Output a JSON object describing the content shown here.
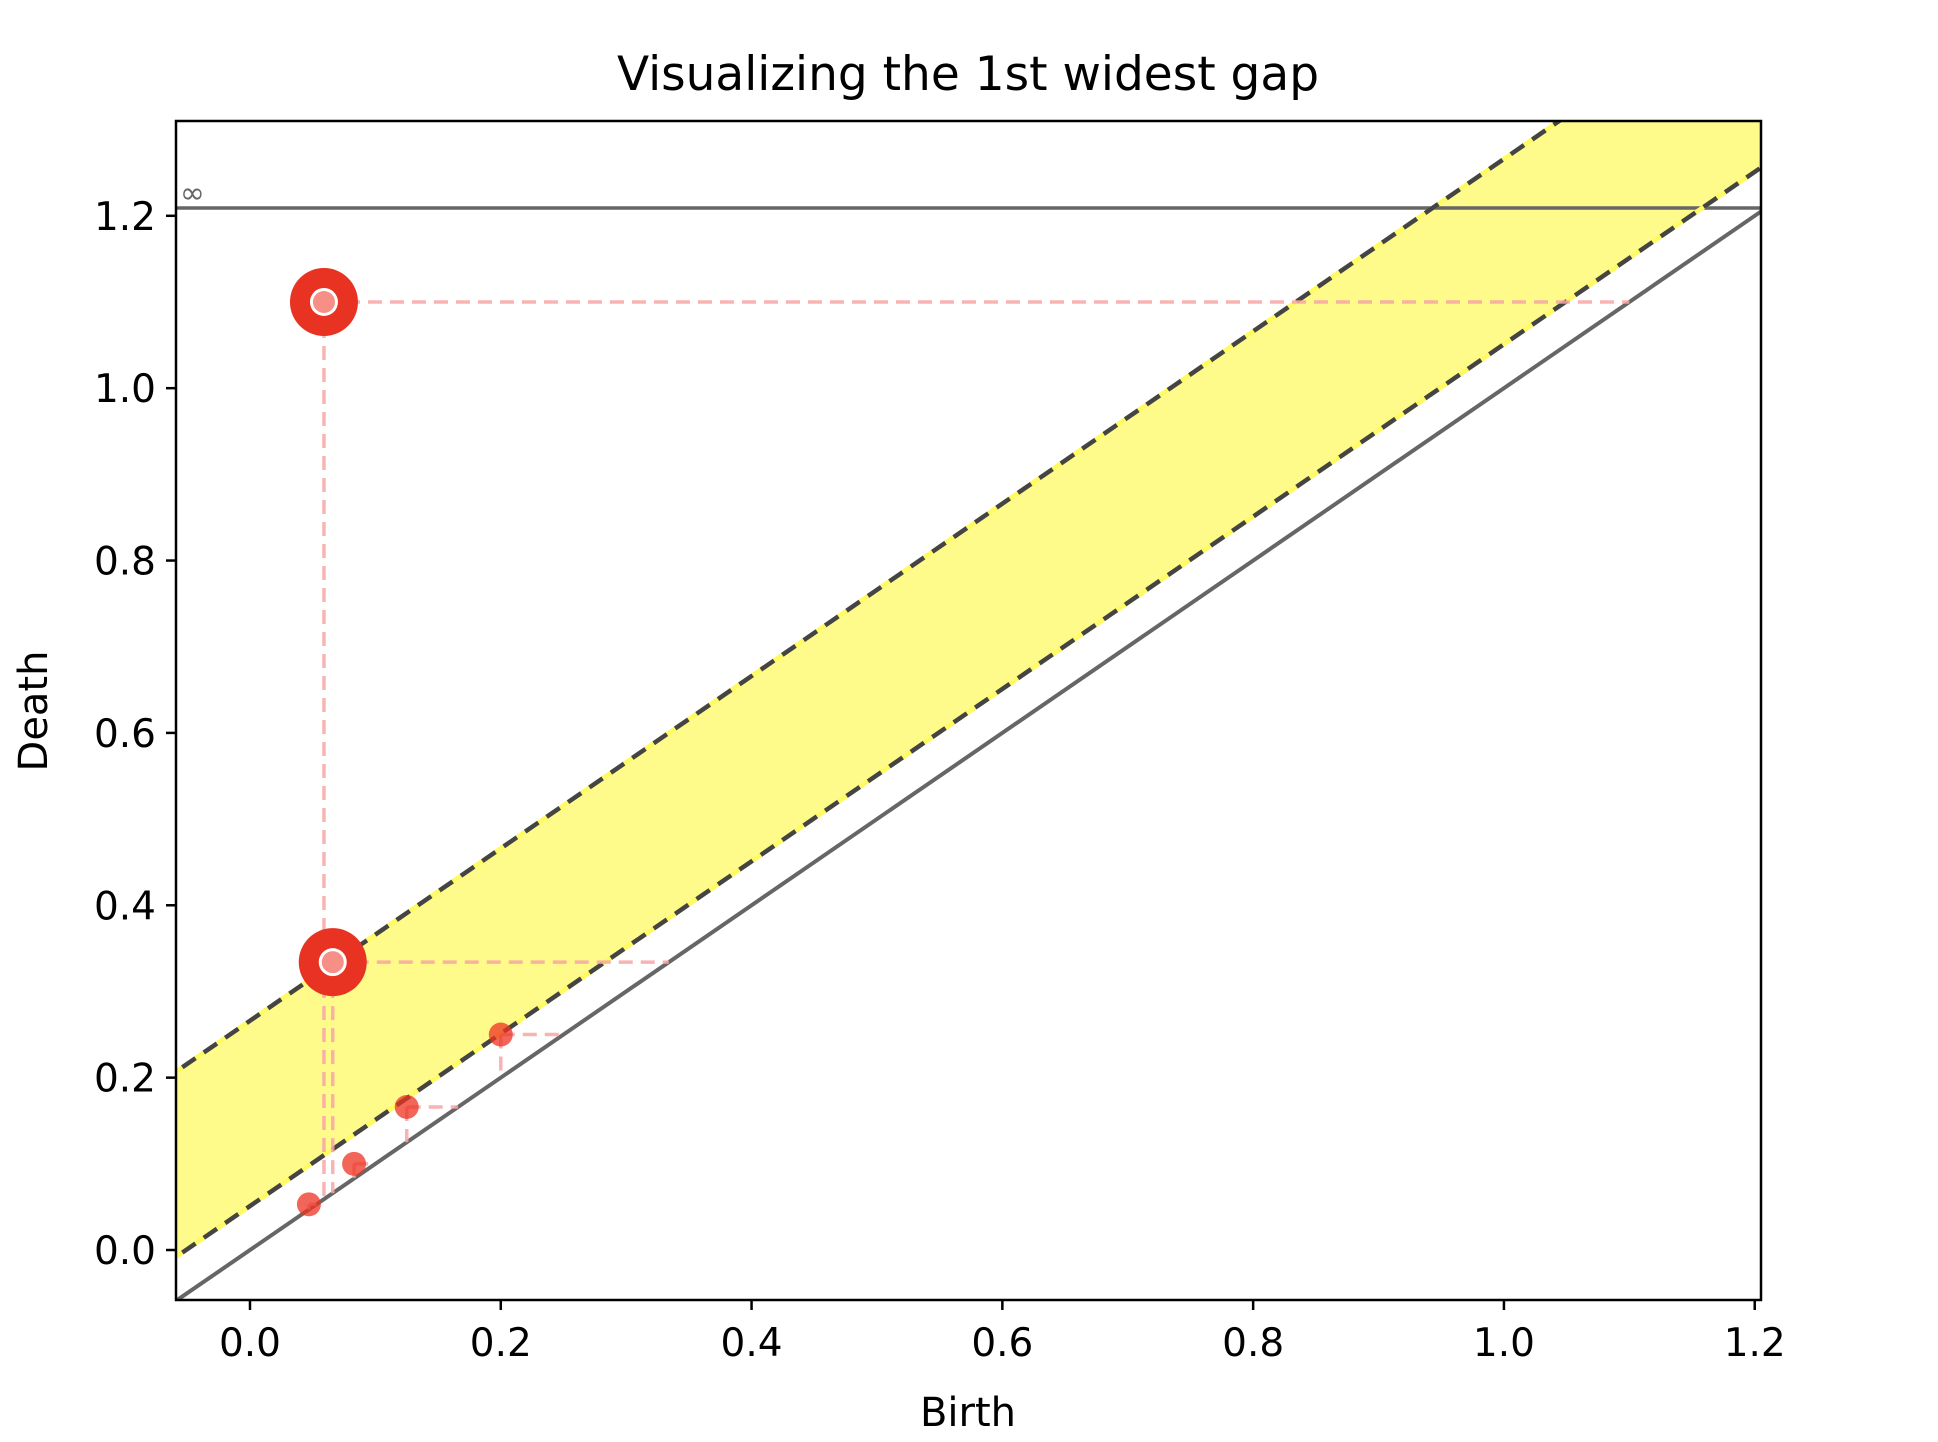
{
  "chart_data": {
    "type": "scatter",
    "title": "Visualizing the 1st widest gap",
    "xlabel": "Birth",
    "ylabel": "Death",
    "xlim": [
      -0.059,
      1.205
    ],
    "ylim": [
      -0.058,
      1.31
    ],
    "xticks": [
      {
        "value": 0.0,
        "label": "0.0"
      },
      {
        "value": 0.2,
        "label": "0.2"
      },
      {
        "value": 0.4,
        "label": "0.4"
      },
      {
        "value": 0.6,
        "label": "0.6"
      },
      {
        "value": 0.8,
        "label": "0.8"
      },
      {
        "value": 1.0,
        "label": "1.0"
      },
      {
        "value": 1.2,
        "label": "1.2"
      }
    ],
    "yticks": [
      {
        "value": 0.0,
        "label": "0.0"
      },
      {
        "value": 0.2,
        "label": "0.2"
      },
      {
        "value": 0.4,
        "label": "0.4"
      },
      {
        "value": 0.6,
        "label": "0.6"
      },
      {
        "value": 0.8,
        "label": "0.8"
      },
      {
        "value": 1.0,
        "label": "1.0"
      },
      {
        "value": 1.2,
        "label": "1.2"
      }
    ],
    "grid": false,
    "infinity_line": {
      "y": 1.209,
      "label": "∞",
      "color": "#666666"
    },
    "diagonal": {
      "color": "#666666"
    },
    "gap_band": {
      "lower_offset": 0.051,
      "upper_offset": 0.266,
      "fill_color": "#fffb8a",
      "line_color": "#444444",
      "dash_highlight_color": "#fffb60"
    },
    "points": [
      {
        "x": 0.059,
        "y": 1.1,
        "highlighted": true
      },
      {
        "x": 0.066,
        "y": 0.334,
        "highlighted": true
      },
      {
        "x": 0.2,
        "y": 0.25,
        "highlighted": false
      },
      {
        "x": 0.125,
        "y": 0.166,
        "highlighted": false
      },
      {
        "x": 0.083,
        "y": 0.1,
        "highlighted": false
      },
      {
        "x": 0.047,
        "y": 0.053,
        "highlighted": false
      }
    ],
    "point_color": "#ee3322",
    "highlight_color": "#e83322",
    "guide_color": "#f7a6a6"
  }
}
